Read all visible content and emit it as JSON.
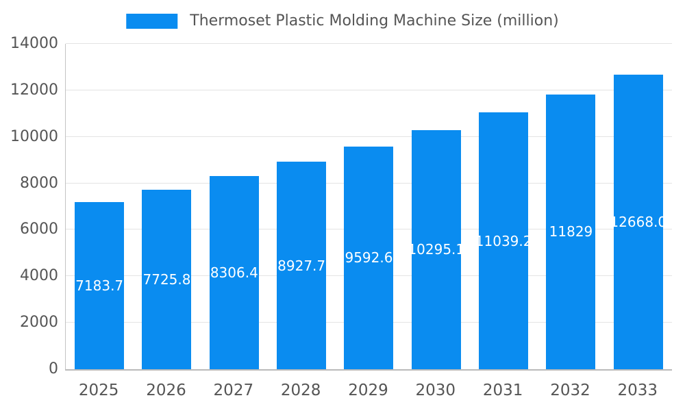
{
  "chart_data": {
    "type": "bar",
    "title": "Thermoset Plastic Molding Machine Size (million)",
    "categories": [
      "2025",
      "2026",
      "2027",
      "2028",
      "2029",
      "2030",
      "2031",
      "2032",
      "2033"
    ],
    "values": [
      7183.7,
      7725.8,
      8306.4,
      8927.7,
      9592.6,
      10295.1,
      11039.2,
      11829,
      12668.0
    ],
    "bar_labels": [
      "7183.7",
      "7725.8",
      "8306.4",
      "8927.7",
      "9592.6",
      "10295.1",
      "11039.2",
      "11829",
      "12668.0"
    ],
    "ylim": [
      0,
      14000
    ],
    "yticks": [
      0,
      2000,
      4000,
      6000,
      8000,
      10000,
      12000,
      14000
    ],
    "ytick_labels": [
      "0",
      "2000",
      "4000",
      "6000",
      "8000",
      "10000",
      "12000",
      "14000"
    ],
    "xlabel": "",
    "ylabel": "",
    "grid": true,
    "legend_position": "top",
    "bar_color": "#0a8cf0",
    "bar_label_color": "#ffffff",
    "axis_text_color": "#555555",
    "grid_line_color": "#e3e3e3"
  }
}
